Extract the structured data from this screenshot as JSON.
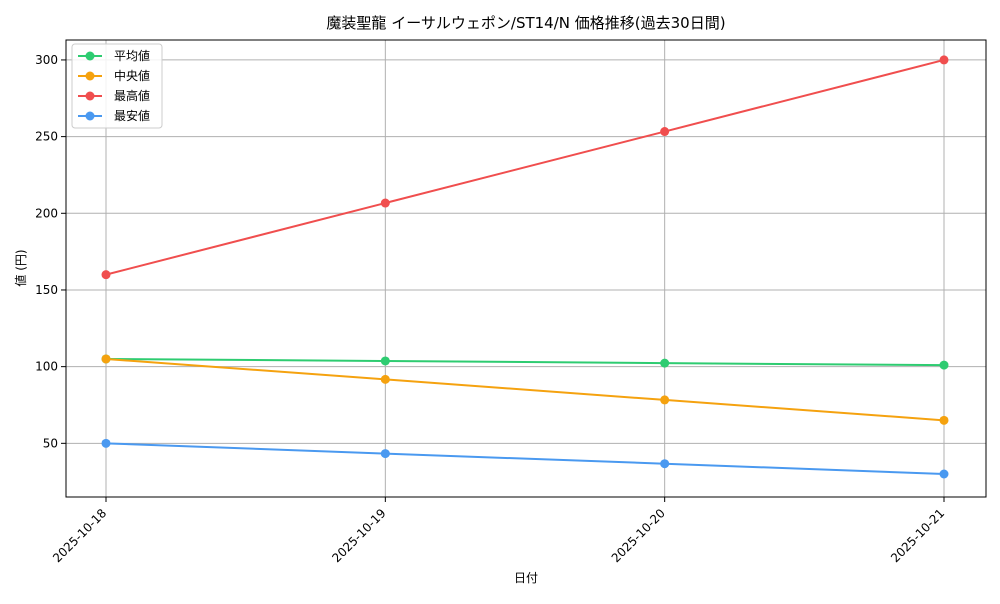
{
  "chart_data": {
    "type": "line",
    "title": "魔装聖龍 イーサルウェポン/ST14/N 価格推移(過去30日間)",
    "xlabel": "日付",
    "ylabel": "値 (円)",
    "categories": [
      "2025-10-18",
      "2025-10-19",
      "2025-10-20",
      "2025-10-21"
    ],
    "ylim": [
      15,
      313
    ],
    "yticks": [
      50,
      100,
      150,
      200,
      250,
      300
    ],
    "grid": true,
    "legend_position": "top-left",
    "series": [
      {
        "name": "平均値",
        "color": "#2ecc71",
        "values": [
          105,
          103.7,
          102.3,
          101
        ]
      },
      {
        "name": "中央値",
        "color": "#f5a20f",
        "values": [
          105,
          91.7,
          78.3,
          65
        ]
      },
      {
        "name": "最高値",
        "color": "#f04e4e",
        "values": [
          160,
          206.7,
          253.3,
          300
        ]
      },
      {
        "name": "最安値",
        "color": "#4a99f0",
        "values": [
          50,
          43.3,
          36.7,
          30
        ]
      }
    ]
  }
}
